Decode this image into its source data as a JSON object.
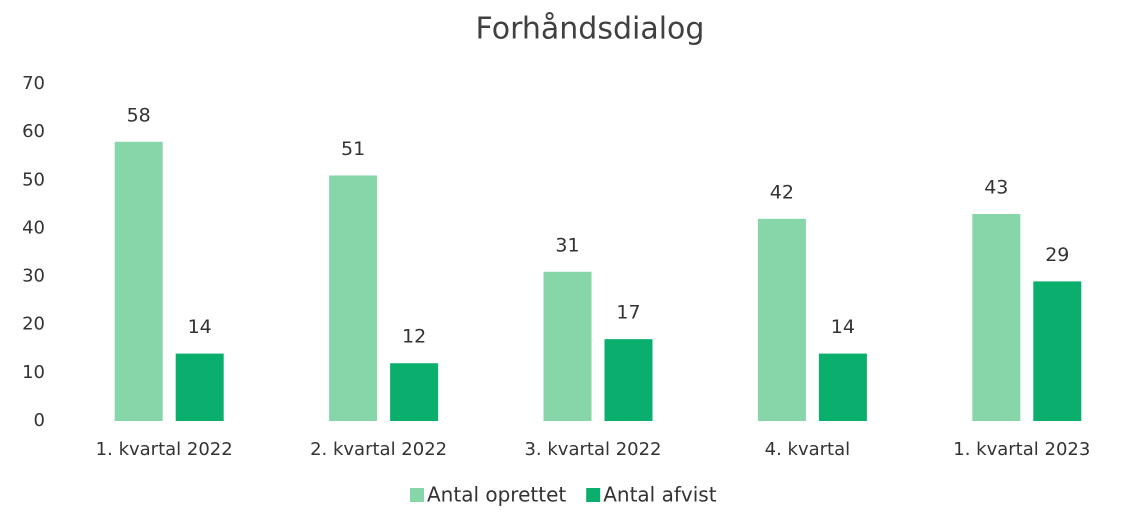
{
  "chart_data": {
    "type": "bar",
    "title": "Forhåndsdialog",
    "categories": [
      "1. kvartal 2022",
      "2. kvartal 2022",
      "3. kvartal 2022",
      "4. kvartal",
      "1. kvartal 2023"
    ],
    "series": [
      {
        "name": "Antal oprettet",
        "color": "#86d6a9",
        "values": [
          58,
          51,
          31,
          42,
          43
        ]
      },
      {
        "name": "Antal afvist",
        "color": "#0aaf6e",
        "values": [
          14,
          12,
          17,
          14,
          29
        ]
      }
    ],
    "ylim": [
      0,
      70
    ],
    "yticks": [
      0,
      10,
      20,
      30,
      40,
      50,
      60,
      70
    ],
    "grid": false,
    "legend": "bottom"
  }
}
